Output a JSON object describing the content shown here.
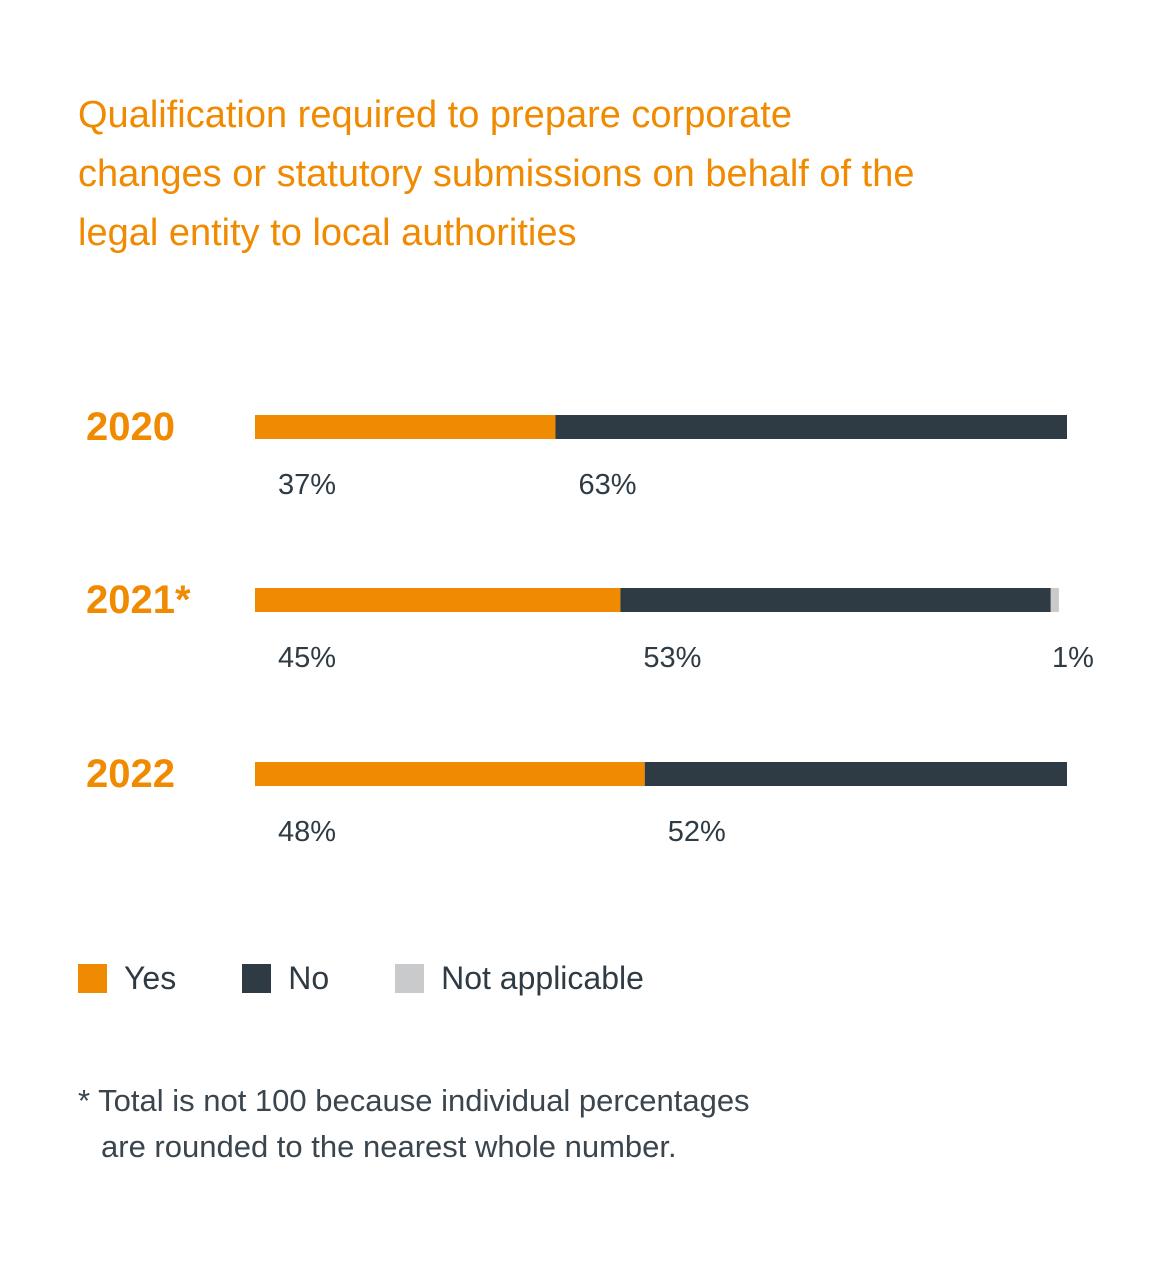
{
  "chart_data": {
    "type": "bar",
    "orientation": "horizontal",
    "stacked": true,
    "title_lines": [
      "Qualification required to prepare corporate",
      "changes or statutory submissions on behalf of the",
      "legal entity to local authorities"
    ],
    "categories": [
      "2020",
      "2021*",
      "2022"
    ],
    "series": [
      {
        "name": "Yes",
        "color": "#f08a00",
        "values": [
          37,
          45,
          48
        ]
      },
      {
        "name": "No",
        "color": "#2f3b44",
        "values": [
          63,
          53,
          52
        ]
      },
      {
        "name": "Not applicable",
        "color": "#c8cacc",
        "values": [
          0,
          1,
          0
        ]
      }
    ],
    "data_labels": [
      [
        "37%",
        "63%",
        ""
      ],
      [
        "45%",
        "53%",
        "1%"
      ],
      [
        "48%",
        "52%",
        ""
      ]
    ],
    "xlim": [
      0,
      100
    ],
    "grid": false,
    "legend_position": "bottom-left"
  },
  "legend": [
    {
      "label": "Yes",
      "color": "#f08a00"
    },
    {
      "label": "No",
      "color": "#2f3b44"
    },
    {
      "label": "Not applicable",
      "color": "#c8cacc"
    }
  ],
  "footnote_lines": [
    "* Total is not 100 because individual percentages",
    "are rounded to the nearest whole number."
  ]
}
